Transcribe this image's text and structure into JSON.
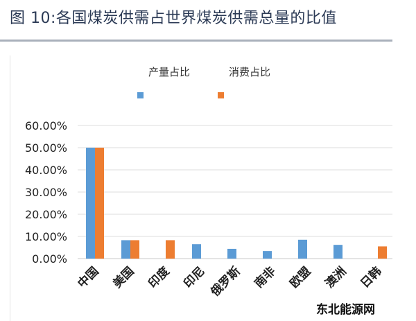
{
  "title": "图 10:各国煤炭供需占世界煤炭供需总量的比值",
  "watermark": "东北能源网",
  "chart_data": {
    "type": "bar",
    "title": "",
    "categories": [
      "中国",
      "美国",
      "印度",
      "印尼",
      "俄罗斯",
      "南非",
      "欧盟",
      "澳洲",
      "日韩"
    ],
    "series": [
      {
        "name": "产量占比",
        "color": "#5b9bd5",
        "values": [
          50.0,
          8.3,
          0,
          6.5,
          4.4,
          3.4,
          8.5,
          6.2,
          0
        ]
      },
      {
        "name": "消费占比",
        "color": "#ed7d31",
        "values": [
          50.0,
          8.3,
          8.3,
          0,
          0,
          0,
          0,
          0,
          5.5
        ]
      }
    ],
    "ylim": [
      0,
      60
    ],
    "yticks": [
      "0.00%",
      "10.00%",
      "20.00%",
      "30.00%",
      "40.00%",
      "50.00%",
      "60.00%"
    ],
    "grid": true,
    "legend": "top"
  }
}
